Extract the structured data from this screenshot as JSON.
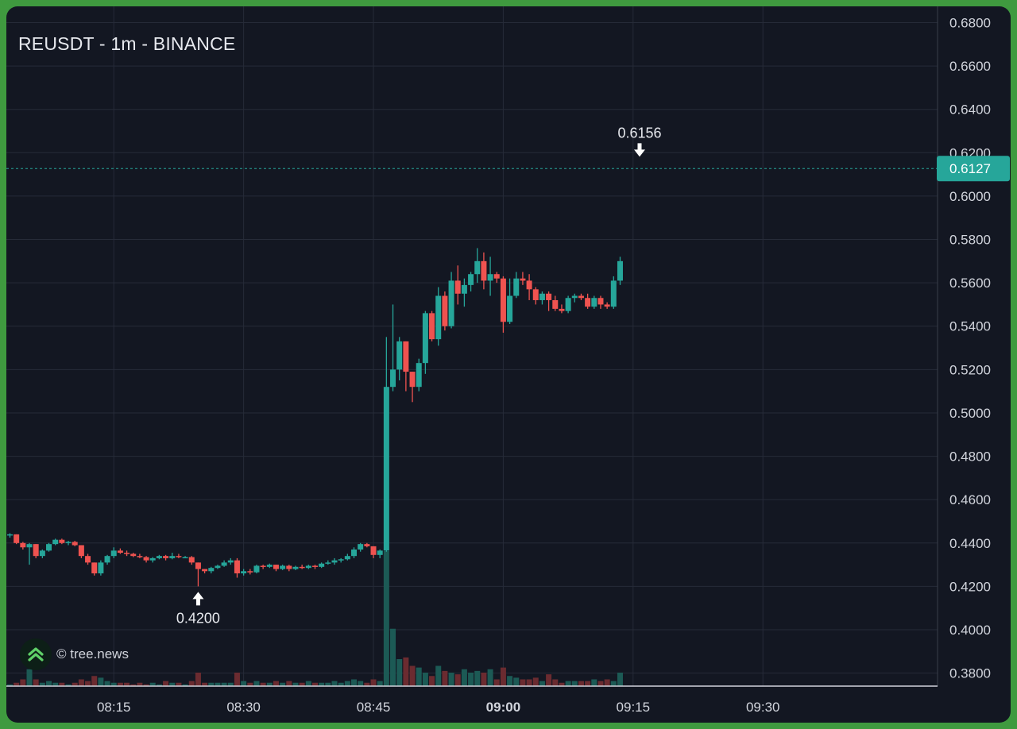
{
  "chart_data": {
    "type": "candlestick",
    "title": "REUSDT - 1m - BINANCE",
    "watermark": "© tree.news",
    "x_tick_labels": [
      "08:15",
      "08:30",
      "08:45",
      "09:00",
      "09:15",
      "09:30"
    ],
    "x_tick_bold": "09:00",
    "y_tick_labels": [
      "0.6800",
      "0.6600",
      "0.6400",
      "0.6200",
      "0.6000",
      "0.5800",
      "0.5600",
      "0.5400",
      "0.5200",
      "0.5000",
      "0.4800",
      "0.4600",
      "0.4400",
      "0.4200",
      "0.4000",
      "0.3800"
    ],
    "ylim": [
      0.374,
      0.6875
    ],
    "grid": true,
    "current_price": 0.6127,
    "current_price_label": "0.6127",
    "high_marker": {
      "price": 0.6156,
      "label": "0.6156",
      "index": 97
    },
    "low_marker": {
      "price": 0.42,
      "label": "0.4200",
      "index": 29
    },
    "colors": {
      "up": "#26a69a",
      "down": "#ef5350",
      "background": "#131722",
      "grid": "#262b38",
      "axis_text": "#d1d4dc"
    },
    "candles": [
      [
        0.4435,
        0.4445,
        0.4425,
        0.444,
        1
      ],
      [
        0.444,
        0.444,
        0.4395,
        0.44,
        2
      ],
      [
        0.44,
        0.4405,
        0.437,
        0.438,
        4
      ],
      [
        0.438,
        0.44,
        0.43,
        0.4395,
        10
      ],
      [
        0.4395,
        0.4395,
        0.433,
        0.434,
        4
      ],
      [
        0.434,
        0.437,
        0.433,
        0.4365,
        2
      ],
      [
        0.4365,
        0.44,
        0.436,
        0.4395,
        3
      ],
      [
        0.4395,
        0.442,
        0.439,
        0.4415,
        2
      ],
      [
        0.4415,
        0.442,
        0.4395,
        0.44,
        2
      ],
      [
        0.44,
        0.441,
        0.439,
        0.4405,
        1
      ],
      [
        0.4405,
        0.441,
        0.4385,
        0.439,
        2
      ],
      [
        0.439,
        0.439,
        0.433,
        0.434,
        4
      ],
      [
        0.434,
        0.435,
        0.43,
        0.431,
        3
      ],
      [
        0.431,
        0.431,
        0.425,
        0.426,
        6
      ],
      [
        0.426,
        0.432,
        0.425,
        0.431,
        5
      ],
      [
        0.431,
        0.4345,
        0.43,
        0.434,
        3
      ],
      [
        0.434,
        0.438,
        0.433,
        0.4365,
        2
      ],
      [
        0.4365,
        0.4375,
        0.435,
        0.4355,
        2
      ],
      [
        0.4355,
        0.4365,
        0.434,
        0.435,
        2
      ],
      [
        0.435,
        0.4355,
        0.4335,
        0.434,
        1
      ],
      [
        0.434,
        0.435,
        0.433,
        0.4335,
        2
      ],
      [
        0.4335,
        0.434,
        0.431,
        0.432,
        1
      ],
      [
        0.432,
        0.4335,
        0.431,
        0.433,
        2
      ],
      [
        0.433,
        0.4345,
        0.4325,
        0.434,
        1
      ],
      [
        0.434,
        0.4345,
        0.432,
        0.433,
        3
      ],
      [
        0.433,
        0.4355,
        0.4325,
        0.434,
        2
      ],
      [
        0.434,
        0.435,
        0.433,
        0.4335,
        2
      ],
      [
        0.4335,
        0.434,
        0.433,
        0.4335,
        1
      ],
      [
        0.4335,
        0.434,
        0.43,
        0.431,
        3
      ],
      [
        0.431,
        0.431,
        0.42,
        0.428,
        8
      ],
      [
        0.428,
        0.428,
        0.426,
        0.427,
        2
      ],
      [
        0.427,
        0.429,
        0.426,
        0.4285,
        2
      ],
      [
        0.4285,
        0.43,
        0.428,
        0.4295,
        2
      ],
      [
        0.4295,
        0.432,
        0.429,
        0.431,
        2
      ],
      [
        0.431,
        0.433,
        0.43,
        0.432,
        2
      ],
      [
        0.432,
        0.433,
        0.424,
        0.426,
        8
      ],
      [
        0.426,
        0.428,
        0.425,
        0.427,
        3
      ],
      [
        0.427,
        0.428,
        0.4255,
        0.4265,
        2
      ],
      [
        0.4265,
        0.43,
        0.426,
        0.4295,
        3
      ],
      [
        0.4295,
        0.43,
        0.428,
        0.429,
        2
      ],
      [
        0.429,
        0.4305,
        0.4285,
        0.43,
        2
      ],
      [
        0.43,
        0.43,
        0.427,
        0.428,
        3
      ],
      [
        0.428,
        0.43,
        0.4275,
        0.4295,
        2
      ],
      [
        0.4295,
        0.43,
        0.427,
        0.428,
        3
      ],
      [
        0.428,
        0.4295,
        0.4275,
        0.429,
        2
      ],
      [
        0.429,
        0.43,
        0.428,
        0.4285,
        2
      ],
      [
        0.4285,
        0.43,
        0.428,
        0.4295,
        3
      ],
      [
        0.4295,
        0.43,
        0.428,
        0.429,
        2
      ],
      [
        0.429,
        0.431,
        0.4285,
        0.4305,
        2
      ],
      [
        0.4305,
        0.432,
        0.43,
        0.431,
        2
      ],
      [
        0.431,
        0.433,
        0.43,
        0.432,
        3
      ],
      [
        0.432,
        0.433,
        0.431,
        0.4325,
        2
      ],
      [
        0.4325,
        0.435,
        0.432,
        0.434,
        3
      ],
      [
        0.434,
        0.438,
        0.433,
        0.437,
        4
      ],
      [
        0.437,
        0.44,
        0.436,
        0.4395,
        3
      ],
      [
        0.4395,
        0.44,
        0.438,
        0.4385,
        2
      ],
      [
        0.4385,
        0.4385,
        0.433,
        0.4345,
        4
      ],
      [
        0.4345,
        0.437,
        0.433,
        0.4365,
        3
      ],
      [
        0.4365,
        0.535,
        0.436,
        0.512,
        80
      ],
      [
        0.512,
        0.55,
        0.51,
        0.52,
        34
      ],
      [
        0.52,
        0.535,
        0.515,
        0.533,
        16
      ],
      [
        0.533,
        0.533,
        0.51,
        0.519,
        17
      ],
      [
        0.519,
        0.519,
        0.505,
        0.512,
        12
      ],
      [
        0.512,
        0.525,
        0.51,
        0.523,
        11
      ],
      [
        0.523,
        0.547,
        0.518,
        0.546,
        8
      ],
      [
        0.546,
        0.547,
        0.533,
        0.534,
        6
      ],
      [
        0.534,
        0.558,
        0.531,
        0.554,
        12
      ],
      [
        0.554,
        0.556,
        0.538,
        0.54,
        9
      ],
      [
        0.54,
        0.565,
        0.539,
        0.561,
        8
      ],
      [
        0.561,
        0.568,
        0.55,
        0.555,
        7
      ],
      [
        0.555,
        0.562,
        0.549,
        0.559,
        10
      ],
      [
        0.559,
        0.565,
        0.556,
        0.564,
        8
      ],
      [
        0.564,
        0.576,
        0.56,
        0.57,
        9
      ],
      [
        0.57,
        0.574,
        0.557,
        0.561,
        8
      ],
      [
        0.561,
        0.572,
        0.554,
        0.564,
        10
      ],
      [
        0.564,
        0.565,
        0.56,
        0.562,
        4
      ],
      [
        0.562,
        0.563,
        0.537,
        0.542,
        11
      ],
      [
        0.542,
        0.562,
        0.541,
        0.554,
        6
      ],
      [
        0.554,
        0.565,
        0.553,
        0.562,
        5
      ],
      [
        0.562,
        0.565,
        0.559,
        0.561,
        4
      ],
      [
        0.561,
        0.564,
        0.552,
        0.557,
        4
      ],
      [
        0.557,
        0.558,
        0.55,
        0.552,
        5
      ],
      [
        0.552,
        0.556,
        0.55,
        0.555,
        3
      ],
      [
        0.555,
        0.556,
        0.547,
        0.552,
        7
      ],
      [
        0.552,
        0.554,
        0.547,
        0.548,
        4
      ],
      [
        0.548,
        0.55,
        0.546,
        0.547,
        2
      ],
      [
        0.547,
        0.554,
        0.546,
        0.553,
        3
      ],
      [
        0.553,
        0.555,
        0.551,
        0.554,
        3
      ],
      [
        0.554,
        0.555,
        0.552,
        0.553,
        3
      ],
      [
        0.553,
        0.555,
        0.548,
        0.549,
        3
      ],
      [
        0.549,
        0.554,
        0.548,
        0.553,
        4
      ],
      [
        0.553,
        0.554,
        0.548,
        0.55,
        3
      ],
      [
        0.55,
        0.551,
        0.548,
        0.549,
        4
      ],
      [
        0.549,
        0.563,
        0.548,
        0.561,
        3
      ],
      [
        0.561,
        0.572,
        0.559,
        0.57,
        8
      ]
    ]
  }
}
